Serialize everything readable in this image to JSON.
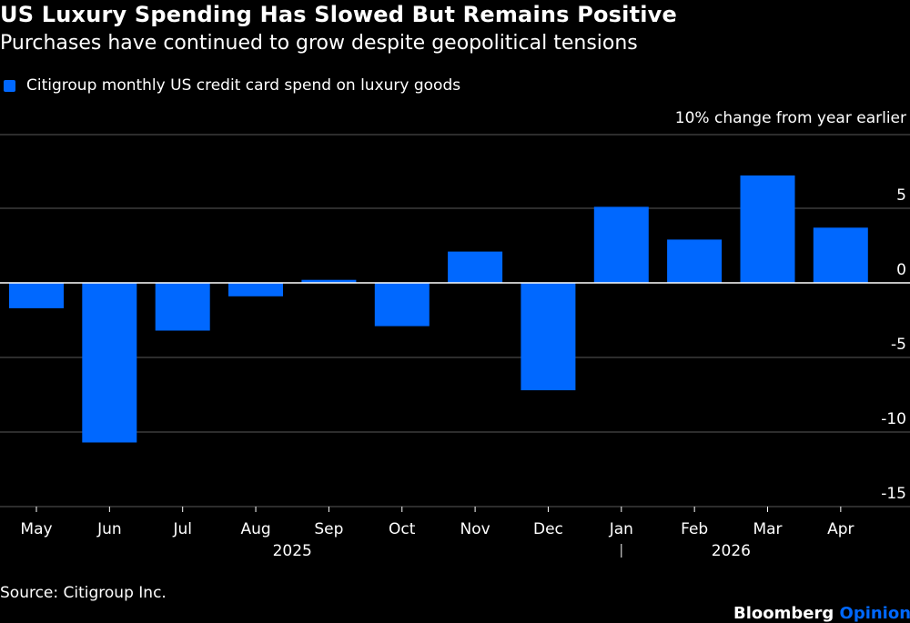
{
  "header": {
    "title": "US Luxury Spending Has Slowed But Remains Positive",
    "subtitle": "Purchases have continued to grow despite geopolitical tensions"
  },
  "legend": {
    "label": "Citigroup monthly US credit card spend on luxury goods",
    "color": "#0068ff"
  },
  "footer": {
    "source": "Source: Citigroup Inc.",
    "brand_main": "Bloomberg",
    "brand_accent": "Opinion",
    "brand_accent_color": "#0068ff"
  },
  "chart_data": {
    "type": "bar",
    "ylabel": "10% change from year earlier",
    "categories": [
      "May",
      "Jun",
      "Jul",
      "Aug",
      "Sep",
      "Oct",
      "Nov",
      "Dec",
      "Jan",
      "Feb",
      "Mar",
      "Apr"
    ],
    "year_labels": [
      {
        "label": "2025",
        "start": 0,
        "end": 7
      },
      {
        "label": "2026",
        "start": 8,
        "end": 11
      }
    ],
    "series": [
      {
        "name": "Citigroup monthly US credit card spend on luxury goods",
        "values": [
          -1.7,
          -10.7,
          -3.2,
          -0.9,
          0.2,
          -2.9,
          2.1,
          -7.2,
          5.1,
          2.9,
          7.2,
          3.7
        ]
      }
    ],
    "ylim": [
      -15,
      10
    ],
    "yticks": [
      5,
      0,
      -5,
      -10,
      -15
    ],
    "grid": true,
    "legend_position": "top-left",
    "bar_color": "#0068ff"
  }
}
